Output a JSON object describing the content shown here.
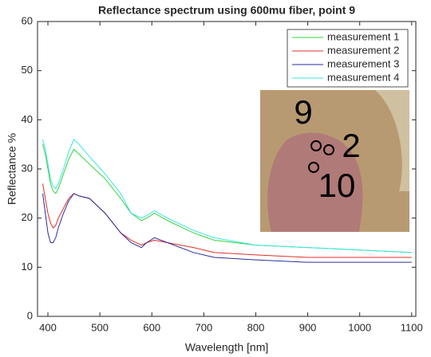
{
  "chart_data": {
    "type": "line",
    "title": "Reflectance spectrum using 600mu fiber, point 9",
    "x_label": "Wavelength [nm]",
    "y_label": "Reflectance %",
    "x": [
      390,
      395,
      400,
      405,
      410,
      415,
      420,
      430,
      440,
      450,
      460,
      480,
      510,
      540,
      560,
      580,
      590,
      605,
      630,
      680,
      720,
      800,
      900,
      1000,
      1100
    ],
    "series": [
      {
        "name": "measurement 1",
        "color": "#3ad33a",
        "values": [
          35,
          33,
          30,
          27,
          25.5,
          25,
          26,
          29,
          32,
          34,
          33,
          31,
          28,
          24,
          21,
          19.5,
          20,
          21,
          19.5,
          17,
          15.5,
          14.5,
          14,
          13.5,
          13
        ]
      },
      {
        "name": "measurement 2",
        "color": "#e0302a",
        "values": [
          27,
          24,
          21,
          19,
          18,
          18.5,
          20,
          22,
          24,
          25,
          24.5,
          24,
          21,
          17,
          15.5,
          14.5,
          15,
          15.5,
          15,
          14,
          13,
          12.5,
          12,
          12,
          12
        ]
      },
      {
        "name": "measurement 3",
        "color": "#2c2c9c",
        "values": [
          25,
          21,
          17,
          15,
          15,
          16,
          18,
          21,
          23.5,
          25,
          24.5,
          24,
          21,
          17,
          15,
          14,
          15,
          16,
          15,
          13,
          12,
          11.5,
          11,
          11,
          11
        ]
      },
      {
        "name": "measurement 4",
        "color": "#36e6e6",
        "values": [
          36,
          34,
          31,
          28,
          26.5,
          26,
          27,
          30,
          33.5,
          36,
          35,
          32.5,
          29,
          25,
          21,
          20,
          20.5,
          21.5,
          20,
          17.5,
          16,
          14.5,
          14,
          13.5,
          13
        ]
      }
    ],
    "xlim": [
      380,
      1108
    ],
    "ylim": [
      0,
      60
    ],
    "xticks": [
      400,
      500,
      600,
      700,
      800,
      900,
      1000,
      1100
    ],
    "yticks": [
      0,
      10,
      20,
      30,
      40,
      50,
      60
    ],
    "legend": "upper right",
    "inset_labels": [
      "9",
      "2",
      "10"
    ]
  }
}
